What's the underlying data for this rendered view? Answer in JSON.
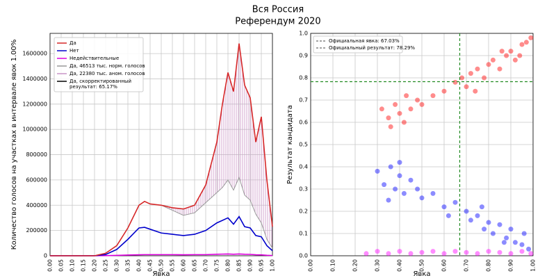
{
  "title_lines": [
    "Вся Россия",
    "Референдум 2020"
  ],
  "chart_data": [
    {
      "type": "line",
      "xlabel": "Явка",
      "ylabel": "Количество голосов на участках в интервале явок 1.00%",
      "xlim": [
        0,
        1
      ],
      "ylim": [
        0,
        1760000
      ],
      "grid": true,
      "legend": "upper left",
      "xticks": [
        {
          "value": 0,
          "label": "0.00"
        },
        {
          "value": 0.05,
          "label": "0.05"
        },
        {
          "value": 0.1,
          "label": "0.10"
        },
        {
          "value": 0.15,
          "label": "0.15"
        },
        {
          "value": 0.2,
          "label": "0.20"
        },
        {
          "value": 0.25,
          "label": "0.25"
        },
        {
          "value": 0.3,
          "label": "0.30"
        },
        {
          "value": 0.35,
          "label": "0.35"
        },
        {
          "value": 0.4,
          "label": "0.40"
        },
        {
          "value": 0.45,
          "label": "0.45"
        },
        {
          "value": 0.5,
          "label": "0.50"
        },
        {
          "value": 0.55,
          "label": "0.55"
        },
        {
          "value": 0.6,
          "label": "0.60"
        },
        {
          "value": 0.65,
          "label": "0.65"
        },
        {
          "value": 0.7,
          "label": "0.70"
        },
        {
          "value": 0.75,
          "label": "0.75"
        },
        {
          "value": 0.8,
          "label": "0.80"
        },
        {
          "value": 0.85,
          "label": "0.85"
        },
        {
          "value": 0.9,
          "label": "0.90"
        },
        {
          "value": 0.95,
          "label": "0.95"
        },
        {
          "value": 1,
          "label": "1.00"
        }
      ],
      "yticks": [
        0,
        200000,
        400000,
        600000,
        800000,
        1000000,
        1200000,
        1400000,
        1600000
      ],
      "x": [
        0,
        0.2,
        0.25,
        0.3,
        0.35,
        0.4,
        0.425,
        0.45,
        0.5,
        0.55,
        0.6,
        0.65,
        0.7,
        0.75,
        0.775,
        0.8,
        0.825,
        0.85,
        0.875,
        0.9,
        0.925,
        0.95,
        0.975,
        1
      ],
      "series": [
        {
          "name": "Да",
          "color": "#d62728",
          "values": [
            0,
            0,
            20000,
            80000,
            220000,
            400000,
            430000,
            410000,
            400000,
            380000,
            370000,
            400000,
            560000,
            900000,
            1200000,
            1450000,
            1300000,
            1680000,
            1350000,
            1250000,
            900000,
            1100000,
            600000,
            230000
          ]
        },
        {
          "name": "Нет",
          "color": "#0000cc",
          "values": [
            0,
            0,
            10000,
            50000,
            130000,
            220000,
            225000,
            210000,
            180000,
            170000,
            160000,
            170000,
            200000,
            260000,
            280000,
            300000,
            250000,
            310000,
            230000,
            220000,
            160000,
            150000,
            80000,
            40000
          ]
        },
        {
          "name": "Недействительные",
          "color": "#dd00dd",
          "values": [
            0,
            0,
            1000,
            3000,
            6000,
            8000,
            9000,
            9000,
            9000,
            9000,
            8000,
            9000,
            9000,
            12000,
            13000,
            14000,
            12000,
            14000,
            12000,
            11000,
            8000,
            7000,
            4000,
            2000
          ]
        },
        {
          "name": "Да, 46513 тыс. норм. голосов",
          "color": "#999999",
          "values": [
            0,
            0,
            20000,
            80000,
            220000,
            400000,
            430000,
            410000,
            400000,
            360000,
            320000,
            340000,
            420000,
            500000,
            540000,
            600000,
            520000,
            620000,
            480000,
            440000,
            330000,
            260000,
            130000,
            60000
          ]
        },
        {
          "name": "Да, 22380 тыс. аном. голосов",
          "color": "#c994c7"
        },
        {
          "name": [
            "Да, скорректированный",
            "результат: 65.17%"
          ],
          "color": "#000000"
        }
      ]
    },
    {
      "type": "scatter",
      "xlabel": "Явка",
      "ylabel": "Результат кандидата",
      "xlim": [
        0,
        1
      ],
      "ylim": [
        0,
        1
      ],
      "grid": true,
      "legend": "upper left",
      "xticks": [
        {
          "value": 0,
          "label": "0.00"
        },
        {
          "value": 0.1,
          "label": "0.10"
        },
        {
          "value": 0.2,
          "label": "0.20"
        },
        {
          "value": 0.3,
          "label": "0.30"
        },
        {
          "value": 0.4,
          "label": "0.40"
        },
        {
          "value": 0.5,
          "label": "0.50"
        },
        {
          "value": 0.6,
          "label": "0.60"
        },
        {
          "value": 0.7,
          "label": "0.70"
        },
        {
          "value": 0.8,
          "label": "0.80"
        },
        {
          "value": 0.9,
          "label": "0.90"
        },
        {
          "value": 1,
          "label": "1.00"
        }
      ],
      "yticks": [
        {
          "value": 0,
          "label": "0.0"
        },
        {
          "value": 0.1,
          "label": "0.1"
        },
        {
          "value": 0.2,
          "label": "0.2"
        },
        {
          "value": 0.3,
          "label": "0.3"
        },
        {
          "value": 0.4,
          "label": "0.4"
        },
        {
          "value": 0.5,
          "label": "0.5"
        },
        {
          "value": 0.6,
          "label": "0.6"
        },
        {
          "value": 0.7,
          "label": "0.7"
        },
        {
          "value": 0.8,
          "label": "0.8"
        },
        {
          "value": 0.9,
          "label": "0.9"
        },
        {
          "value": 1,
          "label": "1.0"
        }
      ],
      "reference_lines": [
        {
          "label": "Официальная явка: 67.03%",
          "axis": "x",
          "value": 0.6703,
          "color": "#228b22"
        },
        {
          "label": "Официальный результат: 78.29%",
          "axis": "y",
          "value": 0.7829,
          "color": "#228b22"
        }
      ],
      "series": [
        {
          "color": "#ff0000",
          "x": [
            0.32,
            0.35,
            0.38,
            0.4,
            0.42,
            0.45,
            0.48,
            0.36,
            0.43,
            0.5,
            0.55,
            0.6,
            0.65,
            0.68,
            0.7,
            0.72,
            0.75,
            0.78,
            0.8,
            0.82,
            0.85,
            0.88,
            0.9,
            0.92,
            0.95,
            0.97,
            0.99,
            0.74,
            0.86,
            0.94
          ],
          "values": [
            0.66,
            0.62,
            0.68,
            0.64,
            0.6,
            0.66,
            0.7,
            0.58,
            0.72,
            0.68,
            0.72,
            0.74,
            0.78,
            0.8,
            0.76,
            0.82,
            0.84,
            0.8,
            0.86,
            0.88,
            0.84,
            0.9,
            0.92,
            0.88,
            0.95,
            0.96,
            0.98,
            0.74,
            0.92,
            0.9
          ]
        },
        {
          "color": "#0000ff",
          "x": [
            0.3,
            0.33,
            0.36,
            0.38,
            0.4,
            0.42,
            0.45,
            0.48,
            0.4,
            0.35,
            0.5,
            0.55,
            0.6,
            0.65,
            0.7,
            0.72,
            0.75,
            0.78,
            0.8,
            0.82,
            0.85,
            0.88,
            0.9,
            0.92,
            0.95,
            0.98,
            0.62,
            0.77,
            0.87,
            0.96
          ],
          "values": [
            0.38,
            0.32,
            0.4,
            0.3,
            0.36,
            0.28,
            0.34,
            0.3,
            0.42,
            0.25,
            0.26,
            0.28,
            0.22,
            0.24,
            0.2,
            0.16,
            0.18,
            0.12,
            0.15,
            0.1,
            0.14,
            0.08,
            0.12,
            0.06,
            0.05,
            0.03,
            0.18,
            0.22,
            0.06,
            0.1
          ]
        },
        {
          "color": "#ff00ff",
          "x": [
            0.25,
            0.3,
            0.35,
            0.4,
            0.45,
            0.5,
            0.55,
            0.6,
            0.65,
            0.7,
            0.75,
            0.8,
            0.85,
            0.9,
            0.95,
            0.99
          ],
          "values": [
            0.01,
            0.02,
            0.01,
            0.02,
            0.01,
            0.015,
            0.02,
            0.01,
            0.02,
            0.015,
            0.01,
            0.02,
            0.015,
            0.01,
            0.02,
            0.01
          ]
        }
      ]
    }
  ]
}
